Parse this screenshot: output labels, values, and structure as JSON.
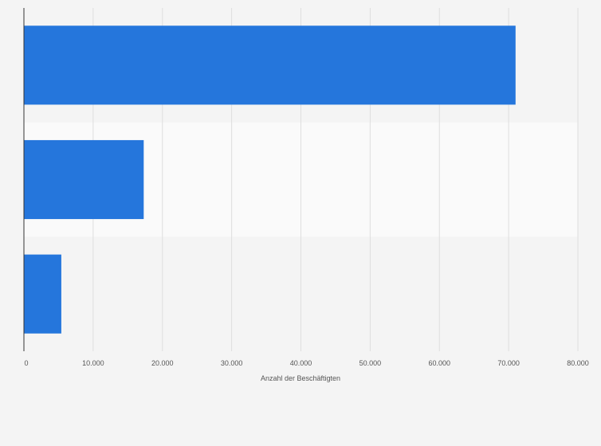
{
  "chart_data": {
    "type": "bar",
    "orientation": "horizontal",
    "categories": [
      "",
      "",
      ""
    ],
    "values": [
      71000,
      17300,
      5400
    ],
    "xlabel": "Anzahl der Beschäftigten",
    "ylabel": "",
    "xlim": [
      0,
      80000
    ],
    "xticks": [
      0,
      10000,
      20000,
      30000,
      40000,
      50000,
      60000,
      70000,
      80000
    ],
    "xtick_labels": [
      "0",
      "10.000",
      "20.000",
      "30.000",
      "40.000",
      "50.000",
      "60.000",
      "70.000",
      "80.000"
    ],
    "grid": "vertical",
    "legend": "none",
    "bar_color": "#2576dc",
    "band_colors": [
      "#f4f4f4",
      "#fafafa",
      "#f4f4f4"
    ]
  }
}
